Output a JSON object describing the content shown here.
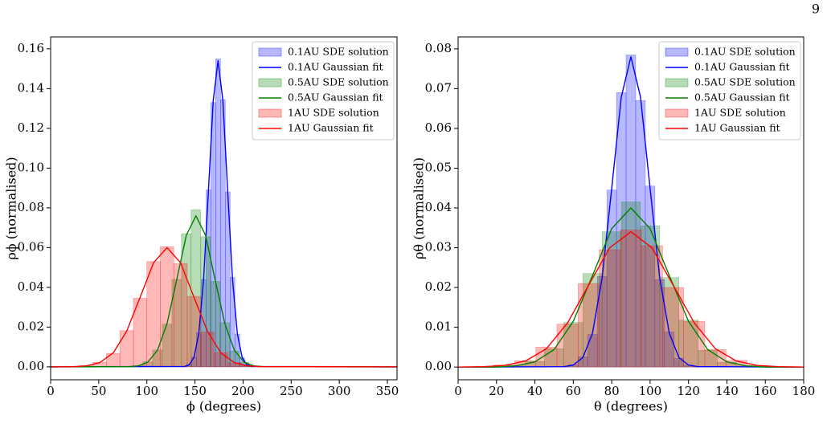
{
  "page_number": "9",
  "chart_data": [
    {
      "type": "histogram",
      "xlabel": "ϕ (degrees)",
      "ylabel": "ρϕ (normalised)",
      "xlim": [
        0,
        360
      ],
      "xticks": [
        0,
        50,
        100,
        150,
        200,
        250,
        300,
        350
      ],
      "ylim": [
        -0.0065,
        0.166
      ],
      "yticks": [
        {
          "value": 0,
          "label": "0.00"
        },
        {
          "value": 0.02,
          "label": "0.02"
        },
        {
          "value": 0.04,
          "label": "0.04"
        },
        {
          "value": 0.06,
          "label": "0.06"
        },
        {
          "value": 0.08,
          "label": "0.08"
        },
        {
          "value": 0.1,
          "label": "0.10"
        },
        {
          "value": 0.12,
          "label": "0.12"
        },
        {
          "value": 0.14,
          "label": "0.14"
        },
        {
          "value": 0.16,
          "label": "0.16"
        }
      ],
      "legend": "upper right",
      "series": [
        {
          "name": "0.1AU SDE solution",
          "type": "histogram",
          "color": "#0000ff",
          "bins": [
            136.5,
            141.5,
            146.5,
            151.5,
            156.5,
            161.5,
            166.5,
            171.5,
            176.5,
            181.5,
            186.5,
            191.5,
            196.5,
            201.5,
            206.5,
            211.5
          ],
          "values": [
            0.0003,
            0.0012,
            0.005,
            0.0172,
            0.044,
            0.089,
            0.133,
            0.155,
            0.1345,
            0.088,
            0.045,
            0.0165,
            0.0046,
            0.0011,
            0.0002
          ]
        },
        {
          "name": "0.1AU Gaussian fit",
          "type": "line",
          "color": "#0000ff",
          "x": [
            0,
            139,
            144,
            149,
            154,
            159,
            164,
            169,
            174,
            179,
            184,
            189,
            194,
            199,
            204,
            209,
            360
          ],
          "values": [
            0,
            0.0002,
            0.001,
            0.0048,
            0.0168,
            0.0443,
            0.0885,
            0.1341,
            0.154,
            0.1341,
            0.0885,
            0.0443,
            0.0168,
            0.0048,
            0.001,
            0.0002,
            0
          ]
        },
        {
          "name": "0.5AU SDE solution",
          "type": "histogram",
          "color": "#008000",
          "bins": [
            76,
            86,
            96,
            106,
            116,
            126,
            136,
            146,
            156,
            166,
            176,
            186,
            196,
            206,
            216,
            226
          ],
          "values": [
            0.0001,
            0.0006,
            0.0025,
            0.0085,
            0.0215,
            0.044,
            0.067,
            0.079,
            0.0655,
            0.043,
            0.0222,
            0.008,
            0.0023,
            0.0005,
            0.0001
          ]
        },
        {
          "name": "0.5AU Gaussian fit",
          "type": "line",
          "color": "#008000",
          "x": [
            0,
            81,
            91,
            101,
            111,
            121,
            131,
            141,
            151,
            161,
            171,
            181,
            191,
            201,
            211,
            221,
            360
          ],
          "values": [
            0,
            0.0001,
            0.0005,
            0.0024,
            0.0083,
            0.0218,
            0.0437,
            0.0662,
            0.076,
            0.0662,
            0.0437,
            0.0218,
            0.0083,
            0.0024,
            0.0005,
            0.0001,
            0
          ]
        },
        {
          "name": "1AU SDE solution",
          "type": "histogram",
          "color": "#ff0000",
          "bins": [
            16,
            30,
            44,
            58,
            72,
            86,
            100,
            114,
            128,
            142,
            156,
            170,
            184,
            198,
            212,
            226
          ],
          "values": [
            0.0002,
            0.0006,
            0.0023,
            0.0068,
            0.0182,
            0.0345,
            0.053,
            0.0605,
            0.052,
            0.0355,
            0.0175,
            0.0072,
            0.002,
            0.0006,
            0.0001
          ]
        },
        {
          "name": "1AU Gaussian fit",
          "type": "line",
          "color": "#ff0000",
          "x": [
            0,
            23,
            37,
            51,
            65,
            79,
            93,
            107,
            121,
            135,
            149,
            163,
            177,
            191,
            205,
            219,
            360
          ],
          "values": [
            0,
            0.0001,
            0.0005,
            0.0021,
            0.007,
            0.0179,
            0.035,
            0.0524,
            0.06,
            0.0524,
            0.035,
            0.0179,
            0.007,
            0.0021,
            0.0005,
            0.0001,
            0
          ]
        }
      ]
    },
    {
      "type": "histogram",
      "xlabel": "θ (degrees)",
      "ylabel": "ρθ (normalised)",
      "xlim": [
        0,
        180
      ],
      "xticks": [
        0,
        20,
        40,
        60,
        80,
        100,
        120,
        140,
        160,
        180
      ],
      "ylim": [
        -0.0032,
        0.083
      ],
      "yticks": [
        {
          "value": 0,
          "label": "0.00"
        },
        {
          "value": 0.01,
          "label": "0.01"
        },
        {
          "value": 0.02,
          "label": "0.02"
        },
        {
          "value": 0.03,
          "label": "0.03"
        },
        {
          "value": 0.04,
          "label": "0.04"
        },
        {
          "value": 0.05,
          "label": "0.05"
        },
        {
          "value": 0.06,
          "label": "0.06"
        },
        {
          "value": 0.07,
          "label": "0.07"
        },
        {
          "value": 0.08,
          "label": "0.08"
        }
      ],
      "legend": "upper right",
      "series": [
        {
          "name": "0.1AU SDE solution",
          "type": "histogram",
          "color": "#0000ff",
          "bins": [
            52.5,
            57.5,
            62.5,
            67.5,
            72.5,
            77.5,
            82.5,
            87.5,
            92.5,
            97.5,
            102.5,
            107.5,
            112.5,
            117.5,
            122.5,
            127.5
          ],
          "values": [
            0.0001,
            0.0006,
            0.0026,
            0.0082,
            0.0228,
            0.0445,
            0.069,
            0.0785,
            0.067,
            0.0455,
            0.022,
            0.0088,
            0.0022,
            0.0005,
            0.0001
          ]
        },
        {
          "name": "0.1AU Gaussian fit",
          "type": "line",
          "color": "#0000ff",
          "x": [
            0,
            55,
            60,
            65,
            70,
            75,
            80,
            85,
            90,
            95,
            100,
            105,
            110,
            115,
            120,
            125,
            180
          ],
          "values": [
            0,
            0.0001,
            0.0005,
            0.0024,
            0.0085,
            0.0224,
            0.0449,
            0.0679,
            0.078,
            0.0679,
            0.0449,
            0.0224,
            0.0085,
            0.0024,
            0.0005,
            0.0001,
            0
          ]
        },
        {
          "name": "0.5AU SDE solution",
          "type": "histogram",
          "color": "#008000",
          "bins": [
            15,
            25,
            35,
            45,
            55,
            65,
            75,
            85,
            95,
            105,
            115,
            125,
            135,
            145,
            155,
            165
          ],
          "values": [
            0.0001,
            0.0004,
            0.0014,
            0.0046,
            0.0112,
            0.0235,
            0.034,
            0.0415,
            0.0355,
            0.0225,
            0.0118,
            0.0042,
            0.0012,
            0.0003,
            0.0001
          ]
        },
        {
          "name": "0.5AU Gaussian fit",
          "type": "line",
          "color": "#008000",
          "x": [
            0,
            20,
            30,
            40,
            50,
            60,
            70,
            80,
            90,
            100,
            110,
            120,
            130,
            140,
            150,
            160,
            180
          ],
          "values": [
            0,
            0,
            0.0003,
            0.0013,
            0.0044,
            0.0115,
            0.023,
            0.0348,
            0.04,
            0.0348,
            0.023,
            0.0115,
            0.0044,
            0.0013,
            0.0003,
            0,
            0
          ]
        },
        {
          "name": "1AU SDE solution",
          "type": "histogram",
          "color": "#ff0000",
          "bins": [
            7.5,
            18.5,
            29.5,
            40.5,
            51.5,
            62.5,
            73.5,
            84.5,
            95.5,
            106.5,
            117.5,
            128.5,
            139.5,
            150.5,
            161.5,
            172.5
          ],
          "values": [
            0.0001,
            0.0005,
            0.0016,
            0.005,
            0.0108,
            0.021,
            0.0295,
            0.0345,
            0.0305,
            0.02,
            0.0115,
            0.0044,
            0.0017,
            0.0004,
            0.0001
          ]
        },
        {
          "name": "1AU Gaussian fit",
          "type": "line",
          "color": "#ff0000",
          "x": [
            0,
            13,
            24,
            35,
            46,
            57,
            68,
            79,
            90,
            101,
            112,
            123,
            134,
            145,
            156,
            167,
            180
          ],
          "values": [
            0,
            0.0001,
            0.0004,
            0.0015,
            0.0046,
            0.0111,
            0.0206,
            0.03,
            0.034,
            0.03,
            0.0206,
            0.0111,
            0.0046,
            0.0015,
            0.0004,
            0.0001,
            0
          ]
        }
      ]
    }
  ]
}
